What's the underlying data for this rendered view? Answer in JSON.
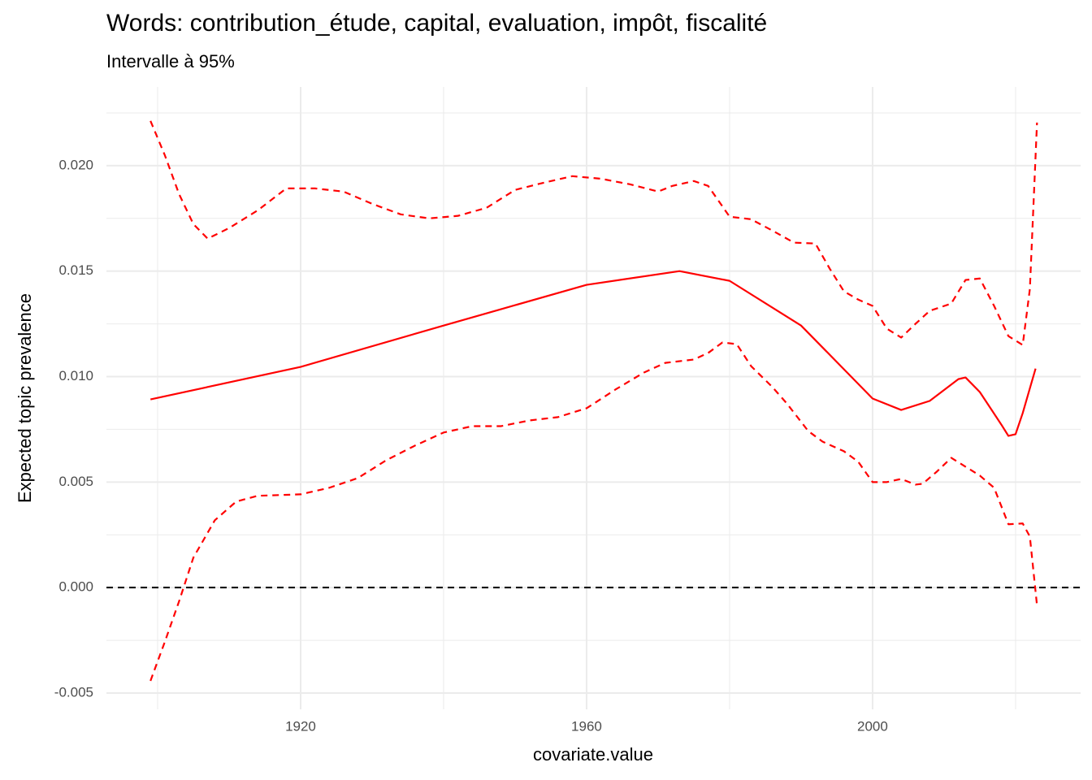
{
  "chart_data": {
    "type": "line",
    "title": "Words: contribution_étude, capital, evaluation, impôt, fiscalité",
    "subtitle": "Intervalle à 95%",
    "x_label": "covariate.value",
    "y_label": "Expected topic prevalence",
    "xlim": [
      1892.84,
      2029.1
    ],
    "ylim": [
      -0.00577,
      0.02373
    ],
    "xticks": [
      1920,
      1960,
      2000
    ],
    "yticks": [
      {
        "value": -0.005,
        "label": "-0.005"
      },
      {
        "value": 0,
        "label": "0.000"
      },
      {
        "value": 0.005,
        "label": "0.005"
      },
      {
        "value": 0.01,
        "label": "0.010"
      },
      {
        "value": 0.015,
        "label": "0.015"
      },
      {
        "value": 0.02,
        "label": "0.020"
      }
    ],
    "grid": true,
    "reference_line": 0,
    "series": [
      {
        "color": "#ff0000",
        "dashed": false,
        "x": [
          1899,
          1920,
          1940,
          1960,
          1973,
          1980,
          1990,
          2000,
          2004,
          2008,
          2012,
          2013,
          2015,
          2018,
          2019,
          2020,
          2021,
          2022.8
        ],
        "values": [
          0.00892,
          0.01046,
          0.01242,
          0.01435,
          0.015,
          0.01454,
          0.01242,
          0.00896,
          0.00842,
          0.00885,
          0.00988,
          0.00996,
          0.00927,
          0.00773,
          0.00719,
          0.00727,
          0.00827,
          0.01038
        ]
      },
      {
        "color": "#ff0000",
        "dashed": true,
        "x": [
          1899,
          1901,
          1903,
          1905,
          1907,
          1910,
          1914,
          1918,
          1922,
          1926,
          1930,
          1934,
          1938,
          1942,
          1946,
          1950,
          1954,
          1958,
          1962,
          1966,
          1970,
          1972,
          1975,
          1977,
          1980,
          1983,
          1986,
          1989,
          1992,
          1994,
          1996,
          1998,
          2000,
          2002,
          2004,
          2006,
          2008,
          2011,
          2013,
          2015,
          2017,
          2019,
          2021,
          2022,
          2023
        ],
        "values": [
          0.02212,
          0.0205,
          0.01865,
          0.01723,
          0.01654,
          0.01704,
          0.01788,
          0.01892,
          0.01892,
          0.01877,
          0.01819,
          0.01769,
          0.0175,
          0.01762,
          0.018,
          0.01885,
          0.01919,
          0.0195,
          0.01938,
          0.01912,
          0.01877,
          0.01904,
          0.01927,
          0.01904,
          0.01758,
          0.01746,
          0.01692,
          0.01635,
          0.01631,
          0.01512,
          0.01404,
          0.01365,
          0.01335,
          0.01227,
          0.01185,
          0.0125,
          0.01312,
          0.01346,
          0.01458,
          0.01465,
          0.01335,
          0.01192,
          0.0115,
          0.01415,
          0.02204
        ]
      },
      {
        "color": "#ff0000",
        "dashed": true,
        "x": [
          1899,
          1901,
          1903,
          1905,
          1908,
          1911,
          1914,
          1920,
          1924,
          1928,
          1932,
          1936,
          1940,
          1944,
          1948,
          1952,
          1956,
          1960,
          1964,
          1968,
          1971,
          1975,
          1977,
          1979,
          1981,
          1983,
          1986,
          1988,
          1991,
          1993,
          1996,
          1998,
          2000,
          2002,
          2004,
          2006,
          2007,
          2009,
          2011,
          2013,
          2015,
          2017,
          2019,
          2021,
          2022,
          2023
        ],
        "values": [
          -0.00442,
          -0.00258,
          -0.00065,
          0.00142,
          0.00319,
          0.00408,
          0.00435,
          0.00442,
          0.00473,
          0.00519,
          0.00604,
          0.00673,
          0.00735,
          0.00765,
          0.00765,
          0.00792,
          0.00808,
          0.0085,
          0.00938,
          0.01019,
          0.01065,
          0.01081,
          0.01112,
          0.01162,
          0.01154,
          0.0105,
          0.0095,
          0.00873,
          0.00742,
          0.00692,
          0.00646,
          0.00596,
          0.005,
          0.005,
          0.00515,
          0.00488,
          0.00492,
          0.0055,
          0.00615,
          0.00573,
          0.00531,
          0.00473,
          0.003,
          0.00304,
          0.00242,
          -0.00085
        ]
      }
    ]
  }
}
